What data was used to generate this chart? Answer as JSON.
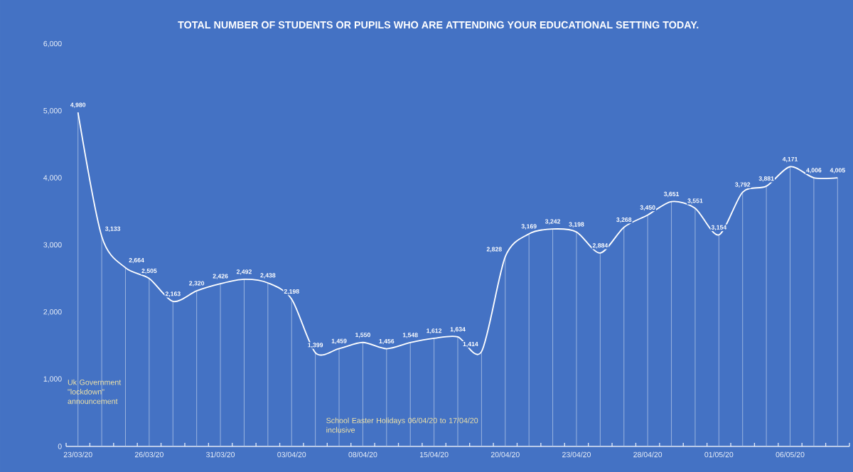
{
  "chart_data": {
    "type": "line",
    "title": "TOTAL NUMBER OF STUDENTS OR PUPILS WHO ARE ATTENDING YOUR EDUCATIONAL SETTING TODAY.",
    "categories": [
      "23/03/20",
      null,
      null,
      "26/03/20",
      null,
      null,
      "31/03/20",
      null,
      null,
      "03/04/20",
      null,
      null,
      "08/04/20",
      null,
      null,
      "15/04/20",
      null,
      null,
      "20/04/20",
      null,
      null,
      "23/04/20",
      null,
      null,
      "28/04/20",
      null,
      null,
      "01/05/20",
      null,
      null,
      "06/05/20",
      null,
      null
    ],
    "values": [
      4980,
      3133,
      2664,
      2505,
      2163,
      2320,
      2426,
      2492,
      2438,
      2198,
      1399,
      1459,
      1550,
      1456,
      1548,
      1612,
      1634,
      1414,
      2828,
      3169,
      3242,
      3198,
      2884,
      3268,
      3450,
      3651,
      3551,
      3154,
      3792,
      3881,
      4171,
      4006,
      4005
    ],
    "value_labels": [
      "4,980",
      "3,133",
      "2,664",
      "2,505",
      "2,163",
      "2,320",
      "2,426",
      "2,492",
      "2,438",
      "2,198",
      "1,399",
      "1,459",
      "1,550",
      "1,456",
      "1,548",
      "1,612",
      "1,634",
      "1,414",
      "2,828",
      "3,169",
      "3,242",
      "3,198",
      "2,884",
      "3,268",
      "3,450",
      "3,651",
      "3,551",
      "3,154",
      "3,792",
      "3,881",
      "4,171",
      "4,006",
      "4,005"
    ],
    "color": "#ffffff",
    "ylim": [
      0,
      6000
    ],
    "yticks": [
      {
        "value": 0,
        "label": "0"
      },
      {
        "value": 1000,
        "label": "1,000"
      },
      {
        "value": 2000,
        "label": "2,000"
      },
      {
        "value": 3000,
        "label": "3,000"
      },
      {
        "value": 4000,
        "label": "4,000"
      },
      {
        "value": 5000,
        "label": "5,000"
      },
      {
        "value": 6000,
        "label": "6,000"
      }
    ],
    "annotations": [
      "Uk Government \"lockdown\" announcement",
      "School Easter Holidays 06/04/20 to 17/04/20 inclusive"
    ],
    "grid": false,
    "marker": "none",
    "line_style": "solid"
  }
}
